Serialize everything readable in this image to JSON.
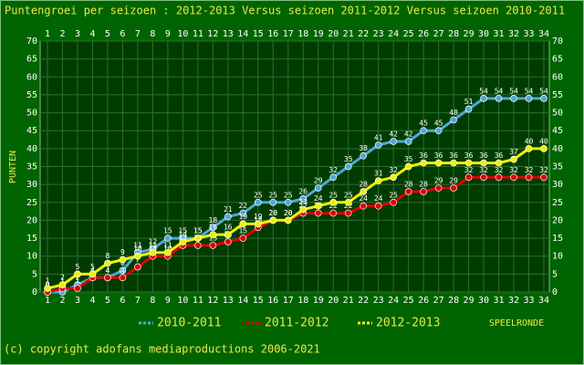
{
  "chart_data": {
    "type": "line",
    "title": "Puntengroei per seizoen : 2012-2013 Versus seizoen 2011-2012 Versus seizoen 2010-2011",
    "y_label": "PUNTEN",
    "x_label": "SPEELRONDE",
    "footer": "(c) copyright adofans mediaproductions 2006-2021",
    "categories": [
      1,
      2,
      3,
      4,
      5,
      6,
      7,
      8,
      9,
      10,
      11,
      12,
      13,
      14,
      15,
      16,
      17,
      18,
      19,
      20,
      21,
      22,
      23,
      24,
      25,
      26,
      27,
      28,
      29,
      30,
      31,
      32,
      33,
      34
    ],
    "ylim": [
      0,
      70
    ],
    "yticks": [
      0,
      5,
      10,
      15,
      20,
      25,
      30,
      35,
      40,
      45,
      50,
      55,
      60,
      65,
      70
    ],
    "grid": true,
    "series": [
      {
        "name": "2010-2011",
        "color": "#4fa8d8",
        "values": [
          0,
          0,
          2,
          4,
          4,
          6,
          11,
          12,
          15,
          15,
          15,
          18,
          21,
          22,
          25,
          25,
          25,
          26,
          29,
          32,
          35,
          38,
          41,
          42,
          42,
          45,
          45,
          48,
          51,
          54,
          54,
          54,
          54,
          54
        ]
      },
      {
        "name": "2011-2012",
        "color": "#e00000",
        "values": [
          0,
          1,
          1,
          4,
          4,
          4,
          7,
          10,
          10,
          13,
          13,
          13,
          14,
          15,
          18,
          20,
          20,
          22,
          22,
          22,
          22,
          24,
          24,
          25,
          28,
          28,
          29,
          29,
          32,
          32,
          32,
          32,
          32,
          32
        ]
      },
      {
        "name": "2012-2013",
        "color": "#f0f000",
        "values": [
          1,
          2,
          5,
          5,
          8,
          9,
          10,
          11,
          11,
          14,
          15,
          16,
          16,
          19,
          19,
          20,
          20,
          23,
          24,
          25,
          25,
          28,
          31,
          32,
          35,
          36,
          36,
          36,
          36,
          36,
          36,
          37,
          40,
          40
        ]
      }
    ]
  }
}
